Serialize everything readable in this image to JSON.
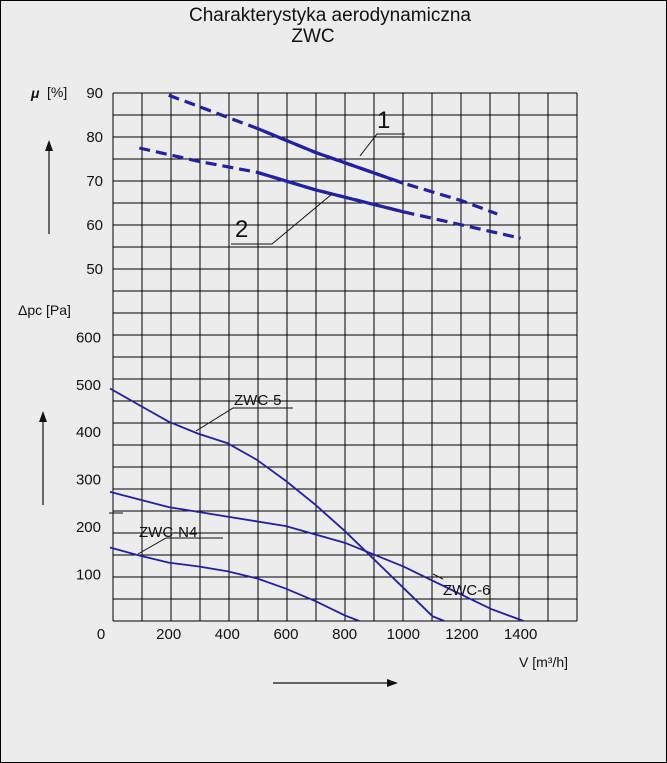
{
  "chart_data": {
    "type": "line",
    "title": "Charakterystyka aerodynamiczna",
    "subtitle": "ZWC",
    "xlabel": "V [m³/h]",
    "xlim": [
      0,
      1400
    ],
    "x_ticks": [
      "0",
      "200",
      "400",
      "600",
      "800",
      "1000",
      "1200",
      "1400"
    ],
    "grid": true,
    "colors": {
      "curve": "#2020a8",
      "grid": "#000000",
      "background": "#ececec"
    },
    "efficiency_panel": {
      "ylabel_symbol": "μ",
      "ylabel_unit": "[%]",
      "ylim": [
        45,
        90
      ],
      "y_ticks": [
        "90",
        "80",
        "70",
        "60",
        "50"
      ],
      "series": [
        {
          "name": "1",
          "style": "dashed-solid-dashed",
          "solid_range": [
            500,
            1000
          ],
          "x": [
            200,
            400,
            500,
            700,
            1000,
            1200,
            1320
          ],
          "y": [
            89.5,
            84.5,
            82,
            76.5,
            69.5,
            65.5,
            62.5
          ]
        },
        {
          "name": "2",
          "style": "dashed-solid-dashed",
          "solid_range": [
            500,
            1000
          ],
          "x": [
            100,
            300,
            500,
            700,
            1000,
            1200,
            1400
          ],
          "y": [
            77.5,
            74.5,
            72,
            68,
            63,
            60,
            57
          ]
        }
      ]
    },
    "pressure_panel": {
      "ylabel": "Δpc [Pa]",
      "ylim": [
        0,
        700
      ],
      "y_ticks": [
        "600",
        "500",
        "400",
        "300",
        "200",
        "100"
      ],
      "series": [
        {
          "name": "ZWC-5",
          "x": [
            0,
            100,
            200,
            300,
            400,
            500,
            600,
            700,
            800,
            900,
            1000,
            1100,
            1140
          ],
          "y": [
            490,
            455,
            420,
            395,
            375,
            340,
            295,
            245,
            190,
            130,
            70,
            10,
            0
          ]
        },
        {
          "name": "ZWC-6",
          "x": [
            0,
            200,
            400,
            600,
            800,
            900,
            1000,
            1100,
            1200,
            1300,
            1410
          ],
          "y": [
            272,
            240,
            220,
            200,
            165,
            140,
            115,
            85,
            55,
            25,
            0
          ]
        },
        {
          "name": "ZWC-N4",
          "x": [
            0,
            100,
            200,
            300,
            400,
            500,
            600,
            700,
            800,
            850
          ],
          "y": [
            155,
            138,
            123,
            115,
            105,
            90,
            68,
            42,
            12,
            0
          ]
        }
      ]
    }
  }
}
